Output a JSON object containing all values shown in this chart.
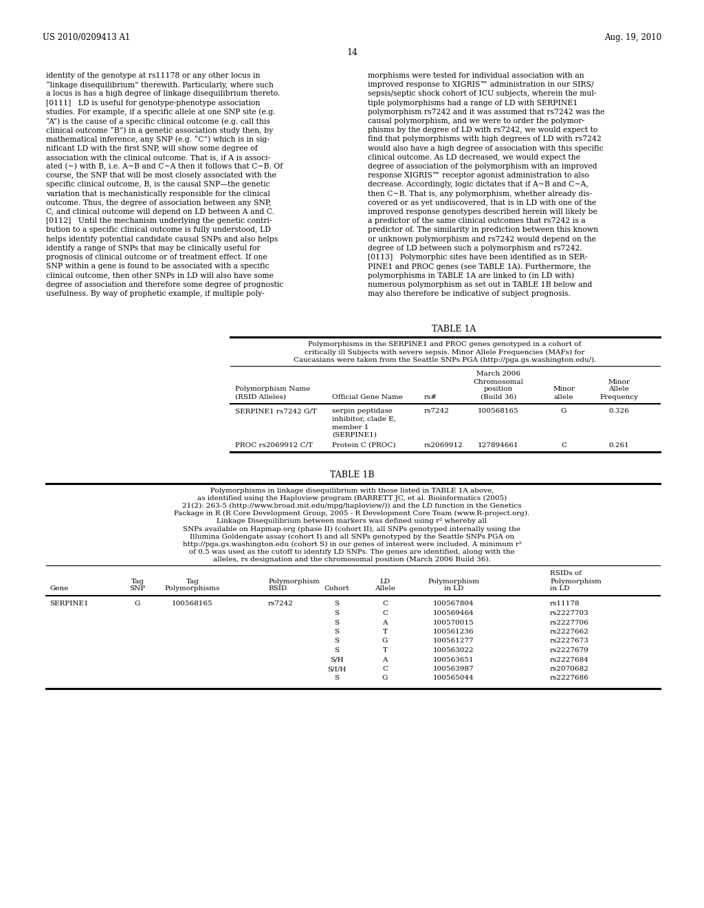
{
  "page_header_left": "US 2010/0209413 A1",
  "page_header_right": "Aug. 19, 2010",
  "page_number": "14",
  "background_color": "#ffffff",
  "text_color": "#000000",
  "left_col_text": [
    "identity of the genotype at rs11178 or any other locus in",
    "“linkage disequilibrium” therewith. Particularly, where such",
    "a locus is has a high degree of linkage disequilibrium thereto.",
    "[0111]   LD is useful for genotype-phenotype association",
    "studies. For example, if a specific allele at one SNP site (e.g.",
    "“A”) is the cause of a specific clinical outcome (e.g. call this",
    "clinical outcome “B”) in a genetic association study then, by",
    "mathematical inference, any SNP (e.g. “C”) which is in sig-",
    "nificant LD with the first SNP, will show some degree of",
    "association with the clinical outcome. That is, if A is associ-",
    "ated (∼) with B, i.e. A∼B and C∼A then it follows that C∼B. Of",
    "course, the SNP that will be most closely associated with the",
    "specific clinical outcome, B, is the causal SNP—the genetic",
    "variation that is mechanistically responsible for the clinical",
    "outcome. Thus, the degree of association between any SNP,",
    "C, and clinical outcome will depend on LD between A and C.",
    "[0112]   Until the mechanism underlying the genetic contri-",
    "bution to a specific clinical outcome is fully understood, LD",
    "helps identify potential candidate causal SNPs and also helps",
    "identify a range of SNPs that may be clinically useful for",
    "prognosis of clinical outcome or of treatment effect. If one",
    "SNP within a gene is found to be associated with a specific",
    "clinical outcome, then other SNPs in LD will also have some",
    "degree of association and therefore some degree of prognostic",
    "usefulness. By way of prophetic example, if multiple poly-"
  ],
  "right_col_text": [
    "morphisms were tested for individual association with an",
    "improved response to XIGRIS™ administration in our SIRS/",
    "sepsis/septic shock cohort of ICU subjects, wherein the mul-",
    "tiple polymorphisms had a range of LD with SERPINE1",
    "polymorphism rs7242 and it was assumed that rs7242 was the",
    "causal polymorphism, and we were to order the polymor-",
    "phisms by the degree of LD with rs7242, we would expect to",
    "find that polymorphisms with high degrees of LD with rs7242",
    "would also have a high degree of association with this specific",
    "clinical outcome. As LD decreased, we would expect the",
    "degree of association of the polymorphism with an improved",
    "response XIGRIS™ receptor agonist administration to also",
    "decrease. Accordingly, logic dictates that if A∼B and C∼A,",
    "then C∼B. That is, any polymorphism, whether already dis-",
    "covered or as yet undiscovered, that is in LD with one of the",
    "improved response genotypes described herein will likely be",
    "a predictor of the same clinical outcomes that rs7242 is a",
    "predictor of. The similarity in prediction between this known",
    "or unknown polymorphism and rs7242 would depend on the",
    "degree of LD between such a polymorphism and rs7242.",
    "[0113]   Polymorphic sites have been identified as in SER-",
    "PINE1 and PROC genes (see TABLE 1A). Furthermore, the",
    "polymorphisms in TABLE 1A are linked to (in LD with)",
    "numerous polymorphism as set out in TABLE 1B below and",
    "may also therefore be indicative of subject prognosis."
  ],
  "table1a_title": "TABLE 1A",
  "table1a_caption_lines": [
    "Polymorphisms in the SERPINE1 and PROC genes genotyped in a cohort of",
    "critically ill Subjects with severe sepsis. Minor Allele Frequencies (MAFs) for",
    "Caucasians were taken from the Seattle SNPs PGA (http://pga.gs.washington.edu/)."
  ],
  "table1a_rows": [
    [
      "SERPINE1 rs7242 G/T",
      "serpin peptidase",
      "rs7242",
      "100568165",
      "G",
      "0.326"
    ],
    [
      "",
      "inhibitor, clade E,",
      "",
      "",
      "",
      ""
    ],
    [
      "",
      "member 1",
      "",
      "",
      "",
      ""
    ],
    [
      "",
      "(SERPINE1)",
      "",
      "",
      "",
      ""
    ],
    [
      "PROC rs2069912 C/T",
      "Protein C (PROC)",
      "rs2069912",
      "127894661",
      "C",
      "0.261"
    ]
  ],
  "table1b_title": "TABLE 1B",
  "table1b_caption_lines": [
    "Polymorphisms in linkage disequilibrium with those listed in TABLE 1A above,",
    "as identified using the Haploview program (BARRETT JC, et al. Bioinformatics (2005)",
    "21(2): 263-5 (http://www.broad.mit.edu/mpg/haploview/)) and the LD function in the Genetics",
    "Package in R (R Core Development Group, 2005 - R Development Core Team (www.R-project.org).",
    "Linkage Disequilibrium between markers was defined using r² whereby all",
    "SNPs available on Hapmap.org (phase II) (cohort II), all SNPs genotyped internally using the",
    "Illumina Goldengate assay (cohort I) and all SNPs genotyped by the Seattle SNPs PGA on",
    "http://pga.gs.washington.edu (cohort S) in our genes of interest were included. A minimum r²",
    "of 0.5 was used as the cutoff to identify LD SNPs. The genes are identified, along with the",
    "alleles, rs designation and the chromosomal position (March 2006 Build 36)."
  ],
  "table1b_rows": [
    [
      "SERPINE1",
      "G",
      "100568165",
      "rs7242",
      "S",
      "C",
      "100567804",
      "rs11178"
    ],
    [
      "",
      "",
      "",
      "",
      "S",
      "C",
      "100569464",
      "rs2227703"
    ],
    [
      "",
      "",
      "",
      "",
      "S",
      "A",
      "100570015",
      "rs2227706"
    ],
    [
      "",
      "",
      "",
      "",
      "S",
      "T",
      "100561236",
      "rs2227662"
    ],
    [
      "",
      "",
      "",
      "",
      "S",
      "G",
      "100561277",
      "rs2227673"
    ],
    [
      "",
      "",
      "",
      "",
      "S",
      "T",
      "100563022",
      "rs2227679"
    ],
    [
      "",
      "",
      "",
      "",
      "S/H",
      "A",
      "100563651",
      "rs2227684"
    ],
    [
      "",
      "",
      "",
      "",
      "S/I/H",
      "C",
      "100563987",
      "rs2070682"
    ],
    [
      "",
      "",
      "",
      "",
      "S",
      "G",
      "100565044",
      "rs2227686"
    ]
  ]
}
